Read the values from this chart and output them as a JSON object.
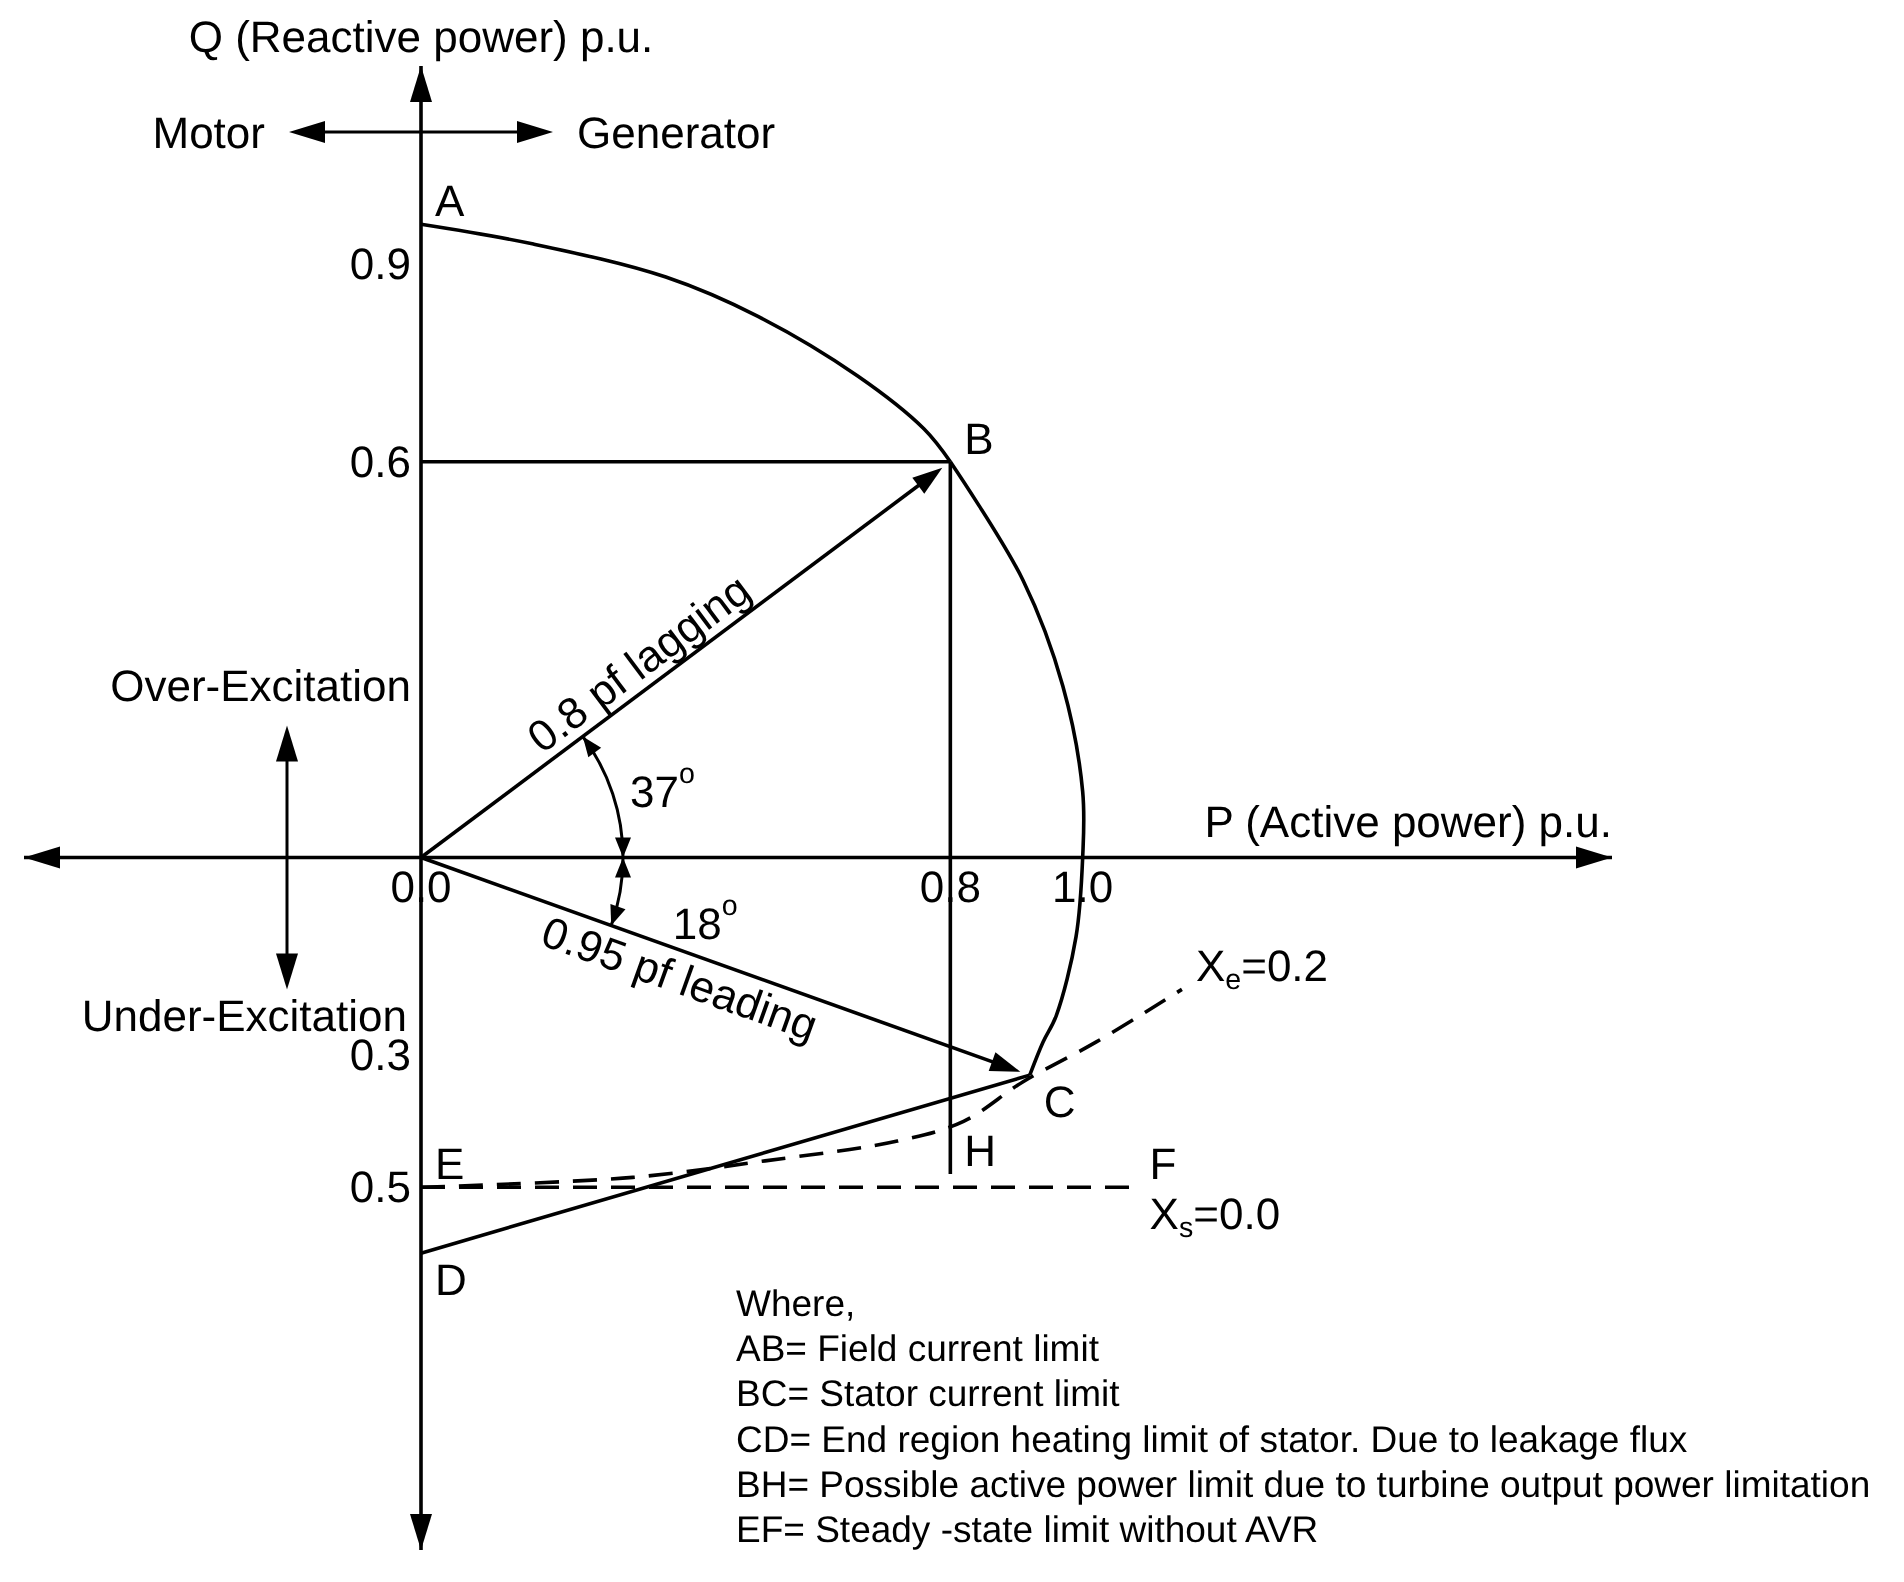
{
  "chart_data": {
    "type": "line",
    "xlabel": "P (Active power) p.u.",
    "ylabel": "Q (Reactive power) p.u.",
    "xlim": [
      -0.6,
      1.8
    ],
    "ylim": [
      -1.05,
      1.2
    ],
    "xticks": [
      {
        "value": 0,
        "label": "0.0"
      },
      0.8,
      {
        "value": 1,
        "label": "1.0"
      }
    ],
    "yticks": [
      0.9,
      0.6,
      {
        "value": -0.3,
        "label": "0.3"
      },
      {
        "value": -0.5,
        "label": "0.5"
      }
    ],
    "series": [
      {
        "color": "#000000",
        "x": [
          0,
          0.17,
          0.37,
          0.51,
          0.66,
          0.76,
          0.8
        ],
        "values": [
          0.96,
          0.93,
          0.88,
          0.82,
          0.73,
          0.65,
          0.6
        ]
      },
      {
        "color": "#000000",
        "x": [
          0.8,
          0.91,
          0.97,
          1.0,
          1.0,
          0.99,
          0.96,
          0.94,
          0.92
        ],
        "values": [
          0.6,
          0.42,
          0.26,
          0.1,
          0,
          -0.12,
          -0.24,
          -0.28,
          -0.33
        ]
      },
      {
        "color": "#000000",
        "x": [
          0.92,
          0
        ],
        "values": [
          -0.33,
          -0.6
        ]
      },
      {
        "color": "#000000",
        "line_style": "dashed",
        "x": [
          0,
          0.32,
          0.52,
          0.72,
          0.82,
          0.91,
          1.02,
          1.15
        ],
        "values": [
          -0.5,
          -0.485,
          -0.46,
          -0.43,
          -0.4,
          -0.34,
          -0.28,
          -0.2
        ]
      },
      {
        "color": "#000000",
        "line_style": "dashed",
        "x": [
          0,
          1.08
        ],
        "values": [
          -0.5,
          -0.5
        ]
      },
      {
        "color": "#000000",
        "x": [
          0.8,
          0.8
        ],
        "values": [
          0.6,
          -0.48
        ]
      },
      {
        "color": "#000000",
        "x": [
          0,
          0.8
        ],
        "values": [
          0.6,
          0.6
        ]
      }
    ],
    "annotations": [
      "Motor",
      "Generator",
      "Over-Excitation",
      "Under-Excitation",
      "0.8 pf lagging",
      "0.95 pf leading",
      "37$^{o}$",
      "18$^{o}$",
      "Where,",
      "AB= Field current limit",
      "BC= Stator current limit",
      "CD= End region heating limit of stator. Due to leakage flux",
      "BH= Possible active power limit due to turbine output power limitation",
      "EF= Steady -state limit without AVR",
      {
        "text": "A",
        "x": 0,
        "y": 0.96
      },
      {
        "text": "B",
        "x": 0.8,
        "y": 0.6
      },
      {
        "text": "C",
        "x": 0.92,
        "y": -0.33
      },
      {
        "text": "D",
        "x": 0,
        "y": -0.6
      },
      {
        "text": "E",
        "x": 0,
        "y": -0.5
      },
      {
        "text": "H",
        "x": 0.8,
        "y": -0.48
      },
      {
        "text": "F",
        "x": 1.08,
        "y": -0.5
      },
      {
        "text": "X$_{e}$=0.2",
        "x": 1.15,
        "y": -0.2
      },
      {
        "text": "X$_{s}$=0.0",
        "x": 1.08,
        "y": -0.5
      }
    ]
  }
}
